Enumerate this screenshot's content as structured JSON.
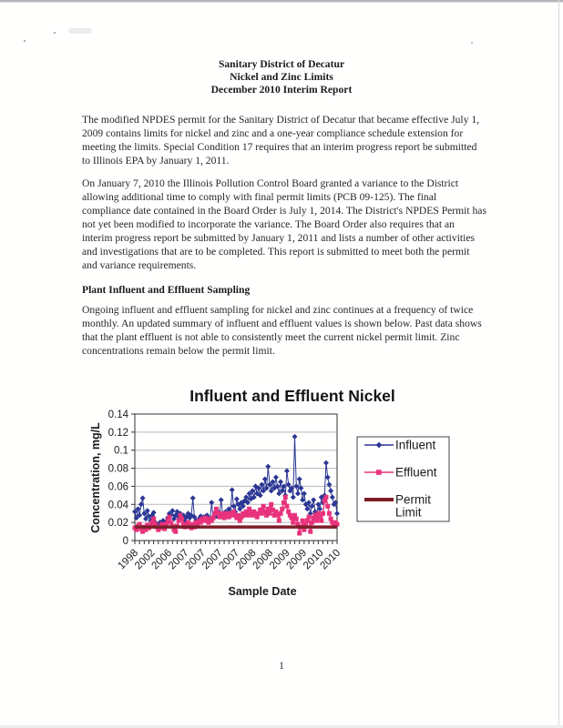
{
  "page": {
    "number": "1"
  },
  "document": {
    "title_lines": [
      "Sanitary District of Decatur",
      "Nickel and Zinc Limits",
      "December 2010 Interim Report"
    ],
    "paragraph1": "The modified NPDES permit for the Sanitary District of Decatur that became effective July 1, 2009 contains limits for nickel and zinc and a one-year compliance schedule extension for meeting the limits.  Special Condition 17 requires that an interim progress report be submitted to Illinois EPA by January 1, 2011.",
    "paragraph2": "On January 7, 2010 the Illinois Pollution Control Board granted a variance to the District allowing additional time to comply with final permit limits (PCB 09-125).  The final compliance date contained in the Board Order is July 1, 2014.  The District's NPDES Permit has not yet been modified to incorporate the variance.  The Board Order also requires that an interim progress report be submitted by January 1, 2011 and lists a number of other activities and investigations that are to be completed.  This report is submitted to meet both the permit and variance requirements.",
    "section_heading": "Plant Influent and Effluent Sampling",
    "paragraph3": "Ongoing influent and effluent sampling for nickel and zinc continues at a frequency of twice monthly.  An updated summary of influent and effluent values is shown below.  Past data shows that the plant effluent is not able to consistently meet the current nickel permit limit.  Zinc concentrations remain below the permit limit."
  },
  "chart_data": {
    "type": "line",
    "title": "Influent and Effluent Nickel",
    "xlabel": "Sample Date",
    "ylabel": "Concentration, mg/L",
    "ylim": [
      0,
      0.14
    ],
    "ytick_step": 0.02,
    "ytick_labels": [
      "0",
      "0.02",
      "0.04",
      "0.06",
      "0.08",
      "0.1",
      "0.12",
      "0.14"
    ],
    "xtick_labels": [
      "1998",
      "2002",
      "2006",
      "2007",
      "2007",
      "2007",
      "2007",
      "2008",
      "2008",
      "2009",
      "2009",
      "2010",
      "2010"
    ],
    "x_mode": "sample-index",
    "grid": true,
    "legend_position": "right",
    "series": [
      {
        "name": "Influent",
        "color": "#2b3694",
        "marker": "diamond",
        "values": [
          0.032,
          0.025,
          0.035,
          0.028,
          0.04,
          0.047,
          0.03,
          0.024,
          0.033,
          0.027,
          0.022,
          0.028,
          0.031,
          0.02,
          0.018,
          0.016,
          0.02,
          0.018,
          0.022,
          0.019,
          0.021,
          0.025,
          0.03,
          0.028,
          0.033,
          0.024,
          0.028,
          0.032,
          0.026,
          0.03,
          0.024,
          0.028,
          0.022,
          0.026,
          0.03,
          0.025,
          0.028,
          0.047,
          0.026,
          0.022,
          0.02,
          0.024,
          0.027,
          0.022,
          0.026,
          0.024,
          0.028,
          0.025,
          0.023,
          0.042,
          0.026,
          0.03,
          0.027,
          0.032,
          0.028,
          0.045,
          0.03,
          0.026,
          0.032,
          0.028,
          0.035,
          0.03,
          0.056,
          0.038,
          0.032,
          0.046,
          0.04,
          0.035,
          0.042,
          0.038,
          0.044,
          0.048,
          0.042,
          0.052,
          0.046,
          0.055,
          0.048,
          0.06,
          0.052,
          0.058,
          0.05,
          0.062,
          0.055,
          0.068,
          0.058,
          0.082,
          0.062,
          0.055,
          0.065,
          0.058,
          0.07,
          0.06,
          0.052,
          0.065,
          0.055,
          0.06,
          0.05,
          0.077,
          0.062,
          0.055,
          0.058,
          0.048,
          0.115,
          0.06,
          0.052,
          0.068,
          0.058,
          0.045,
          0.052,
          0.04,
          0.035,
          0.042,
          0.03,
          0.038,
          0.045,
          0.032,
          0.028,
          0.04,
          0.035,
          0.048,
          0.042,
          0.05,
          0.086,
          0.07,
          0.062,
          0.055,
          0.048,
          0.04,
          0.042,
          0.03
        ]
      },
      {
        "name": "Effluent",
        "color": "#e8327c",
        "marker": "square",
        "values": [
          0.014,
          0.012,
          0.016,
          0.018,
          0.013,
          0.01,
          0.015,
          0.012,
          0.017,
          0.014,
          0.016,
          0.02,
          0.024,
          0.018,
          0.015,
          0.012,
          0.014,
          0.018,
          0.016,
          0.013,
          0.018,
          0.022,
          0.026,
          0.02,
          0.016,
          0.012,
          0.01,
          0.016,
          0.022,
          0.028,
          0.024,
          0.018,
          0.015,
          0.018,
          0.02,
          0.016,
          0.014,
          0.018,
          0.015,
          0.02,
          0.018,
          0.022,
          0.02,
          0.024,
          0.022,
          0.025,
          0.022,
          0.02,
          0.024,
          0.022,
          0.025,
          0.03,
          0.035,
          0.03,
          0.026,
          0.03,
          0.028,
          0.025,
          0.03,
          0.028,
          0.026,
          0.03,
          0.028,
          0.032,
          0.028,
          0.025,
          0.028,
          0.022,
          0.026,
          0.03,
          0.028,
          0.032,
          0.028,
          0.035,
          0.03,
          0.028,
          0.032,
          0.03,
          0.026,
          0.03,
          0.034,
          0.03,
          0.038,
          0.032,
          0.028,
          0.035,
          0.03,
          0.04,
          0.034,
          0.028,
          0.032,
          0.028,
          0.022,
          0.03,
          0.035,
          0.042,
          0.048,
          0.038,
          0.032,
          0.028,
          0.025,
          0.02,
          0.028,
          0.024,
          0.018,
          0.008,
          0.015,
          0.022,
          0.012,
          0.018,
          0.022,
          0.026,
          0.01,
          0.02,
          0.025,
          0.028,
          0.022,
          0.03,
          0.026,
          0.022,
          0.03,
          0.044,
          0.048,
          0.038,
          0.03,
          0.024,
          0.02,
          0.016,
          0.02,
          0.018
        ]
      },
      {
        "name": "Permit Limit",
        "color": "#7a1e28",
        "marker": "none",
        "constant": 0.015
      }
    ]
  }
}
